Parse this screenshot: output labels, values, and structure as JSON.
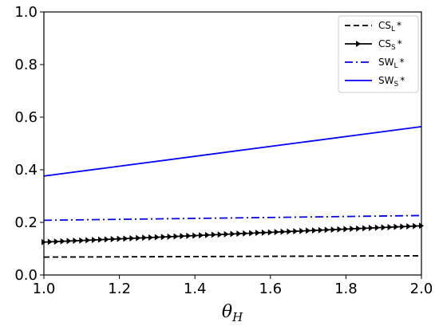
{
  "chart_data": {
    "type": "line",
    "title": "",
    "xlabel": "θ",
    "xlabel_subscript": "H",
    "ylabel": "",
    "xlim": [
      1.0,
      2.0
    ],
    "ylim": [
      0.0,
      1.0
    ],
    "xticks": [
      "1.0",
      "1.2",
      "1.4",
      "1.6",
      "1.8",
      "2.0"
    ],
    "yticks": [
      "0.0",
      "0.2",
      "0.4",
      "0.6",
      "0.8",
      "1.0"
    ],
    "grid": false,
    "legend_position": "top-right",
    "x": [
      1.0,
      2.0
    ],
    "series": [
      {
        "name_main": "CS",
        "name_sub": "L",
        "name_suffix": "*",
        "values": [
          0.068,
          0.073
        ],
        "color": "#000000",
        "style": "dashed"
      },
      {
        "name_main": "CS",
        "name_sub": "S",
        "name_suffix": "*",
        "values": [
          0.125,
          0.187
        ],
        "color": "#000000",
        "style": "solid-markers"
      },
      {
        "name_main": "SW",
        "name_sub": "L",
        "name_suffix": "*",
        "values": [
          0.208,
          0.226
        ],
        "color": "#0000ff",
        "style": "dashdot"
      },
      {
        "name_main": "SW",
        "name_sub": "S",
        "name_suffix": "*",
        "values": [
          0.376,
          0.564
        ],
        "color": "#0000ff",
        "style": "solid"
      }
    ]
  }
}
